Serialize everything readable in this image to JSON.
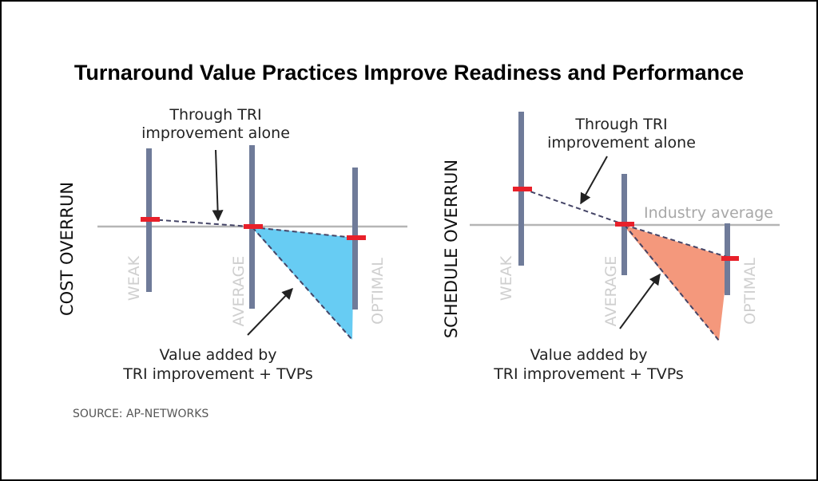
{
  "title": "Turnaround Value Practices Improve Readiness and Performance",
  "source": "SOURCE: AP-NETWORKS",
  "colors": {
    "bar": "#6f7b99",
    "marker": "#e8202a",
    "baseline": "#b5b5b5",
    "tier_label": "#cfcfcf",
    "cost_fill": "#67ccf3",
    "schedule_fill": "#f4987c",
    "dash_line": "#444466"
  },
  "chart_data": [
    {
      "type": "line",
      "ylabel": "COST OVERRUN",
      "categories": [
        "WEAK",
        "AVERAGE",
        "OPTIMAL"
      ],
      "series": [],
      "annotations": [
        "Through TRI improvement alone",
        "Value added by TRI improvement + TVPs"
      ],
      "grid": false
    },
    {
      "type": "line",
      "ylabel": "SCHEDULE OVERRUN",
      "categories": [
        "WEAK",
        "AVERAGE",
        "OPTIMAL"
      ],
      "series": [],
      "baseline_label": "Industry average",
      "annotations": [
        "Through TRI improvement alone",
        "Value added by TRI improvement + TVPs"
      ],
      "grid": false
    }
  ],
  "annotations": {
    "cost_top_1": "Through TRI",
    "cost_top_2": "improvement alone",
    "cost_bottom_1": "Value added by",
    "cost_bottom_2": "TRI improvement + TVPs",
    "sched_top_1": "Through TRI",
    "sched_top_2": "improvement alone",
    "sched_bottom_1": "Value added by",
    "sched_bottom_2": "TRI improvement + TVPs"
  }
}
